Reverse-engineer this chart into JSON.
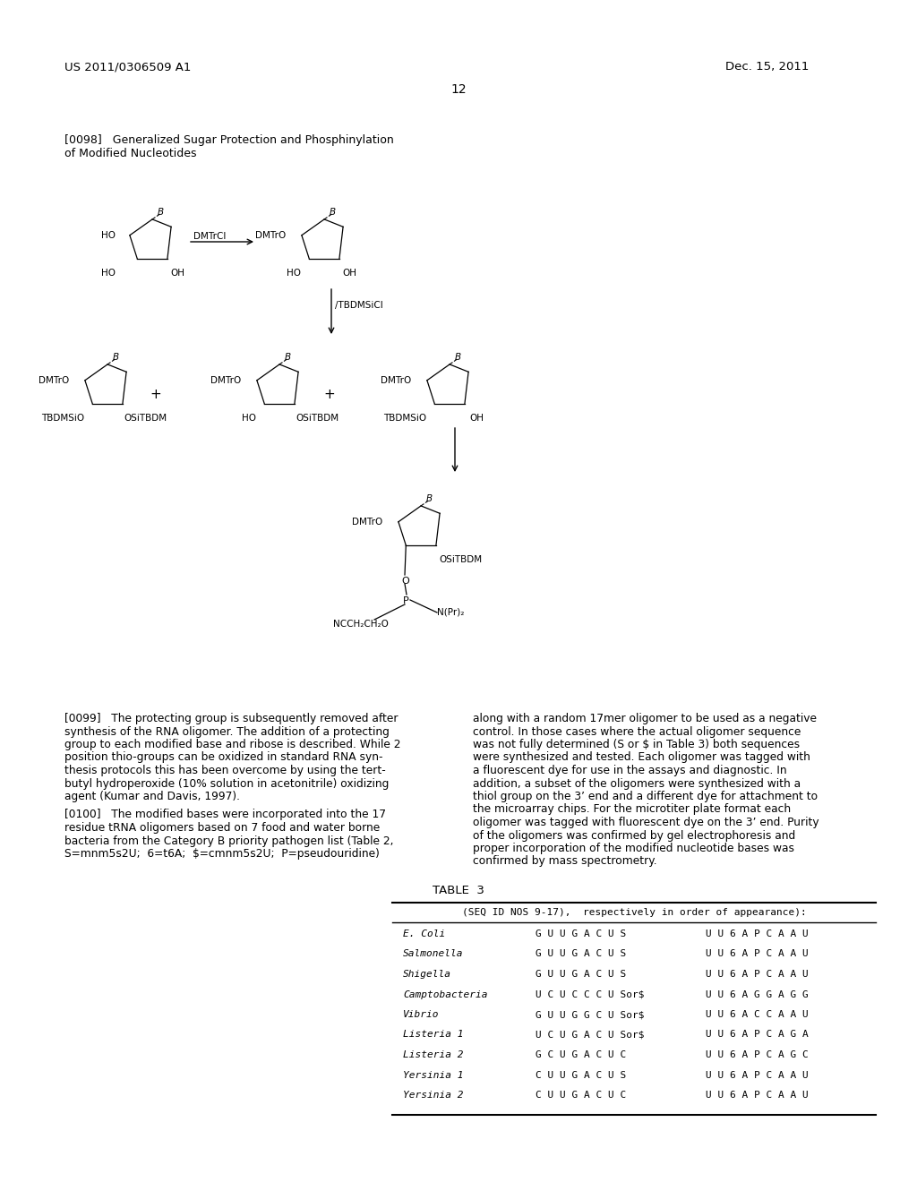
{
  "page_number": "12",
  "patent_number": "US 2011/0306509 A1",
  "patent_date": "Dec. 15, 2011",
  "section_header_1": "[0098]   Generalized Sugar Protection and Phosphinylation",
  "section_header_2": "of Modified Nucleotides",
  "para_0099": [
    "[0099]   The protecting group is subsequently removed after",
    "synthesis of the RNA oligomer. The addition of a protecting",
    "group to each modified base and ribose is described. While 2",
    "position thio-groups can be oxidized in standard RNA syn-",
    "thesis protocols this has been overcome by using the tert-",
    "butyl hydroperoxide (10% solution in acetonitrile) oxidizing",
    "agent (Kumar and Davis, 1997)."
  ],
  "para_0100": [
    "[0100]   The modified bases were incorporated into the 17",
    "residue tRNA oligomers based on 7 food and water borne",
    "bacteria from the Category B priority pathogen list (Table 2,",
    "S=mnm5s2U;  6=t6A;  $=cmnm5s2U;  P=pseudouridine)"
  ],
  "para_right": [
    "along with a random 17mer oligomer to be used as a negative",
    "control. In those cases where the actual oligomer sequence",
    "was not fully determined (S or $ in Table 3) both sequences",
    "were synthesized and tested. Each oligomer was tagged with",
    "a fluorescent dye for use in the assays and diagnostic. In",
    "addition, a subset of the oligomers were synthesized with a",
    "thiol group on the 3’ end and a different dye for attachment to",
    "the microarray chips. For the microtiter plate format each",
    "oligomer was tagged with fluorescent dye on the 3’ end. Purity",
    "of the oligomers was confirmed by gel electrophoresis and",
    "proper incorporation of the modified nucleotide bases was",
    "confirmed by mass spectrometry."
  ],
  "table_title": "TABLE  3",
  "table_subtitle": "(SEQ ID NOS 9-17),  respectively in order of appearance):",
  "table_rows": [
    [
      "E. Coli",
      "G U U G A C U S",
      "U U 6 A P C A A U"
    ],
    [
      "Salmonella",
      "G U U G A C U S",
      "U U 6 A P C A A U"
    ],
    [
      "Shigella",
      "G U U G A C U S",
      "U U 6 A P C A A U"
    ],
    [
      "Camptobacteria",
      "U C U C C C U Sor$",
      "U U 6 A G G A G G"
    ],
    [
      "Vibrio",
      "G U U G G C U Sor$",
      "U U 6 A C C A A U"
    ],
    [
      "Listeria 1",
      "U C U G A C U Sor$",
      "U U 6 A P C A G A"
    ],
    [
      "Listeria 2",
      "G C U G A C U C",
      "U U 6 A P C A G C"
    ],
    [
      "Yersinia 1",
      "C U U G A C U S",
      "U U 6 A P C A A U"
    ],
    [
      "Yersinia 2",
      "C U U G A C U C",
      "U U 6 A P C A A U"
    ]
  ],
  "bg_color": "#ffffff"
}
